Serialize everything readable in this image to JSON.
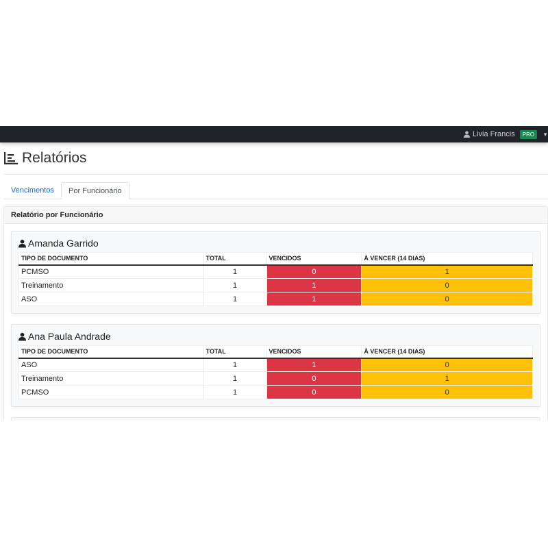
{
  "navbar": {
    "user_name": "Livia Francis",
    "badge": "PRO",
    "icons": {
      "user": "user-icon",
      "caret": "caret-down-icon"
    }
  },
  "page": {
    "title": "Relatórios",
    "icon": "report-list-icon"
  },
  "tabs": [
    {
      "label": "Vencimentos",
      "active": false
    },
    {
      "label": "Por Funcionário",
      "active": true
    }
  ],
  "card": {
    "header": "Relatório por Funcionário"
  },
  "columns": [
    "TIPO DE DOCUMENTO",
    "TOTAL",
    "VENCIDOS",
    "À VENCER (14 DIAS)"
  ],
  "colors": {
    "vencidos": "#dc3545",
    "a_vencer": "#ffc107",
    "navbar": "#212529",
    "badge": "#198754"
  },
  "employees": [
    {
      "name": "Amanda Garrido",
      "rows": [
        {
          "tipo": "PCMSO",
          "total": "1",
          "vencidos": "0",
          "a_vencer": "1"
        },
        {
          "tipo": "Treinamento",
          "total": "1",
          "vencidos": "1",
          "a_vencer": "0"
        },
        {
          "tipo": "ASO",
          "total": "1",
          "vencidos": "1",
          "a_vencer": "0"
        }
      ]
    },
    {
      "name": "Ana Paula Andrade",
      "rows": [
        {
          "tipo": "ASO",
          "total": "1",
          "vencidos": "1",
          "a_vencer": "0"
        },
        {
          "tipo": "Treinamento",
          "total": "1",
          "vencidos": "0",
          "a_vencer": "1"
        },
        {
          "tipo": "PCMSO",
          "total": "1",
          "vencidos": "0",
          "a_vencer": "0"
        }
      ]
    }
  ]
}
